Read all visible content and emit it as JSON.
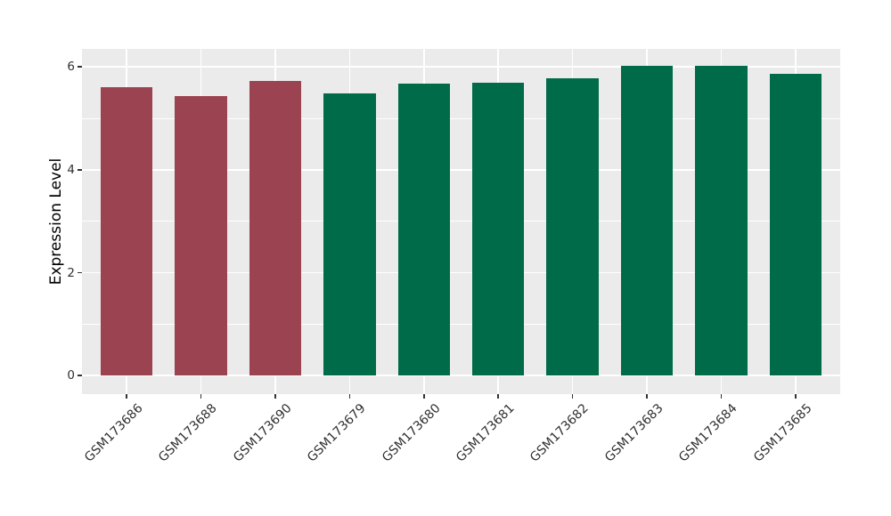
{
  "chart_data": {
    "type": "bar",
    "title": "",
    "xlabel": "",
    "ylabel": "Expression Level",
    "categories": [
      "GSM173686",
      "GSM173688",
      "GSM173690",
      "GSM173679",
      "GSM173680",
      "GSM173681",
      "GSM173682",
      "GSM173683",
      "GSM173684",
      "GSM173685"
    ],
    "values": [
      5.6,
      5.44,
      5.73,
      5.49,
      5.68,
      5.69,
      5.78,
      6.03,
      6.03,
      5.87
    ],
    "bar_colors": [
      "#9C4351",
      "#9C4351",
      "#9C4351",
      "#006B49",
      "#006B49",
      "#006B49",
      "#006B49",
      "#006B49",
      "#006B49",
      "#006B49"
    ],
    "yticks": [
      0,
      2,
      4,
      6
    ],
    "yticks_minor": [
      1,
      3,
      5
    ],
    "ylim": [
      -0.36,
      6.35
    ],
    "x_label_rotation_deg": 45,
    "grid": true,
    "legend_position": "none",
    "colors": {
      "figure_background": "#FFFFFF",
      "panel_background": "#EBEBEB",
      "grid_color": "#FFFFFF",
      "tick_color": "#333333",
      "axis_text_color": "#303030",
      "axis_title_color": "#000000",
      "group1_color": "#9C4351",
      "group2_color": "#006B49"
    }
  }
}
